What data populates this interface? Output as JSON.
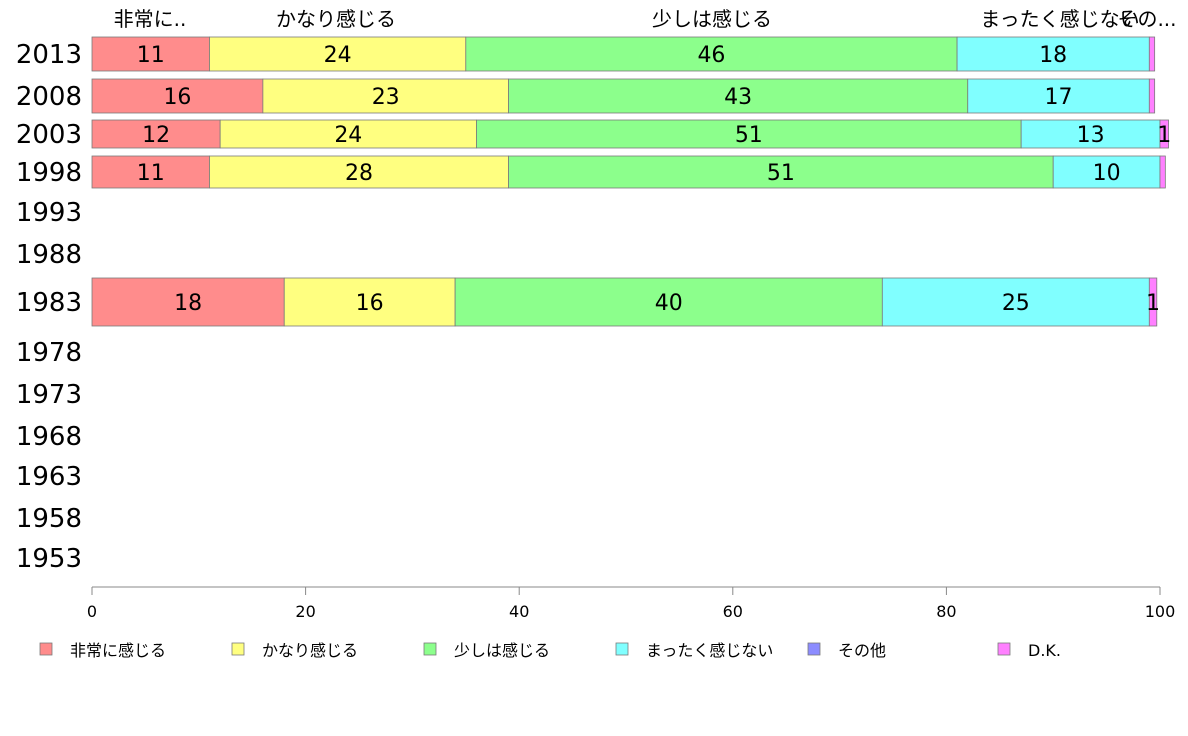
{
  "chart_data": {
    "type": "bar",
    "orientation": "horizontal",
    "stacked": true,
    "title": "",
    "xlabel": "",
    "ylabel": "",
    "xlim": [
      0,
      100
    ],
    "x_ticks": [
      "0",
      "20",
      "40",
      "60",
      "80",
      "100"
    ],
    "categories": [
      "2013",
      "2008",
      "2003",
      "1998",
      "1993",
      "1988",
      "1983",
      "1978",
      "1973",
      "1968",
      "1963",
      "1958",
      "1953"
    ],
    "top_labels": [
      "非常に..",
      "かなり感じる",
      "少しは感じる",
      "まったく感じない",
      "その..."
    ],
    "series": [
      {
        "name": "非常に感じる",
        "color": "#ff8c8c",
        "values": [
          11,
          16,
          12,
          11,
          null,
          null,
          18,
          null,
          null,
          null,
          null,
          null,
          null
        ],
        "labels": [
          "11",
          "16",
          "12",
          "11",
          "",
          "",
          "18",
          "",
          "",
          "",
          "",
          "",
          ""
        ]
      },
      {
        "name": "かなり感じる",
        "color": "#ffff80",
        "values": [
          24,
          23,
          24,
          28,
          null,
          null,
          16,
          null,
          null,
          null,
          null,
          null,
          null
        ],
        "labels": [
          "24",
          "23",
          "24",
          "28",
          "",
          "",
          "16",
          "",
          "",
          "",
          "",
          "",
          ""
        ]
      },
      {
        "name": "少しは感じる",
        "color": "#8cff8c",
        "values": [
          46,
          43,
          51,
          51,
          null,
          null,
          40,
          null,
          null,
          null,
          null,
          null,
          null
        ],
        "labels": [
          "46",
          "43",
          "51",
          "51",
          "",
          "",
          "40",
          "",
          "",
          "",
          "",
          "",
          ""
        ]
      },
      {
        "name": "まったく感じない",
        "color": "#80ffff",
        "values": [
          18,
          17,
          13,
          10,
          null,
          null,
          25,
          null,
          null,
          null,
          null,
          null,
          null
        ],
        "labels": [
          "18",
          "17",
          "13",
          "10",
          "",
          "",
          "25",
          "",
          "",
          "",
          "",
          "",
          ""
        ]
      },
      {
        "name": "その他",
        "color": "#8c8cff",
        "values": [
          0,
          0,
          0,
          0,
          null,
          null,
          0,
          null,
          null,
          null,
          null,
          null,
          null
        ],
        "labels": [
          "",
          "",
          "",
          "",
          "",
          "",
          "",
          "",
          "",
          "",
          "",
          "",
          ""
        ]
      },
      {
        "name": "D.K.",
        "color": "#ff80ff",
        "values": [
          0.5,
          0.5,
          0.8,
          0.5,
          null,
          null,
          0.7,
          null,
          null,
          null,
          null,
          null,
          null
        ],
        "labels": [
          "",
          "",
          "1",
          "",
          "",
          "",
          "1",
          "",
          "",
          "",
          "",
          "",
          ""
        ]
      }
    ],
    "legend_position": "bottom",
    "grid": false
  }
}
